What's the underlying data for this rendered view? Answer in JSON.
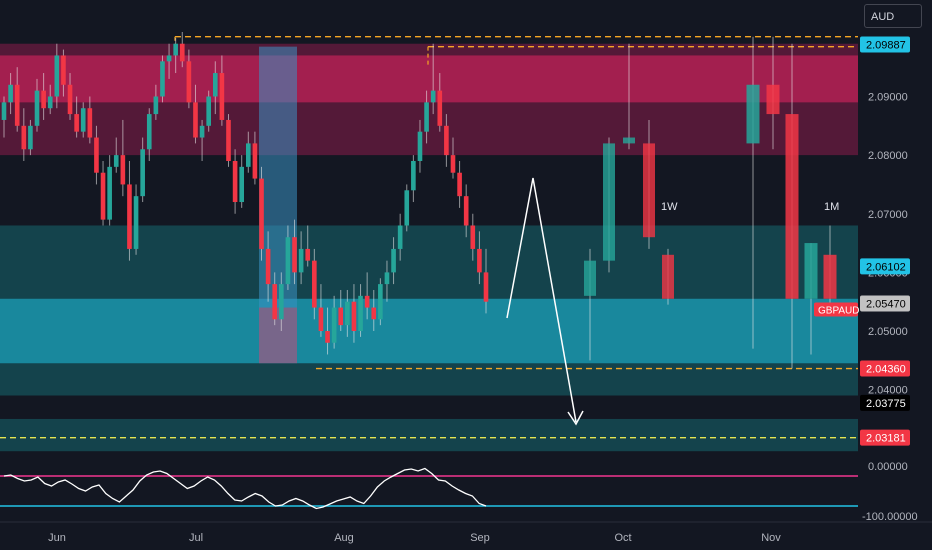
{
  "symbol": "GBPAUD",
  "currency_button": "AUD",
  "colors": {
    "bg": "#131722",
    "up": "#26a69a",
    "down": "#f23645",
    "rsi_line": "#ffffff",
    "supply_zone": "#8a1c4a",
    "demand_zone": "#15686f",
    "dashed_level": "#f5a623"
  },
  "chart_data": [
    {
      "type": "candlestick",
      "title": "",
      "instrument": "GBPAUD",
      "x_ticks": [
        "Jun",
        "Jul",
        "Aug",
        "Sep",
        "Oct",
        "Nov"
      ],
      "y_ticks": [
        "2.04000",
        "2.05000",
        "2.06000",
        "2.07000",
        "2.08000",
        "2.09000"
      ],
      "ylim": [
        2.028,
        2.101
      ],
      "grid": false,
      "price_labels": [
        {
          "text": "2.09887",
          "value": 2.09887,
          "bg": "#22c3e6",
          "fg": "#000000"
        },
        {
          "text": "2.06102",
          "value": 2.06102,
          "bg": "#22c3e6",
          "fg": "#000000"
        },
        {
          "text": "2.05470",
          "value": 2.0547,
          "bg": "#c2c2c2",
          "fg": "#000000"
        },
        {
          "text": "2.04360",
          "value": 2.0436,
          "bg": "#f23645",
          "fg": "#ffffff"
        },
        {
          "text": "2.03775",
          "value": 2.03775,
          "bg": "#000000",
          "fg": "#ffffff"
        },
        {
          "text": "2.03181",
          "value": 2.03181,
          "bg": "#f23645",
          "fg": "#ffffff"
        }
      ],
      "symbol_tag": "GBPAUD",
      "annotations": [
        "1W",
        "1M"
      ],
      "zones": [
        {
          "kind": "supply",
          "from": 2.08,
          "to": 2.099
        },
        {
          "kind": "supply-core",
          "from": 2.089,
          "to": 2.097
        },
        {
          "kind": "demand",
          "from": 2.039,
          "to": 2.068
        },
        {
          "kind": "demand-core",
          "from": 2.0445,
          "to": 2.0555
        }
      ],
      "levels": [
        {
          "value": 2.1002,
          "style": "dashed",
          "color": "#f5a623"
        },
        {
          "value": 2.0985,
          "style": "dashed",
          "color": "#f5a623"
        },
        {
          "value": 2.0436,
          "style": "dashed",
          "color": "#f5a623"
        },
        {
          "value": 2.0318,
          "style": "dashed",
          "color": "#e6e650"
        }
      ],
      "daily_candles": [
        [
          2.086,
          2.09,
          2.083,
          2.089
        ],
        [
          2.089,
          2.094,
          2.087,
          2.092
        ],
        [
          2.092,
          2.095,
          2.084,
          2.085
        ],
        [
          2.085,
          2.088,
          2.079,
          2.081
        ],
        [
          2.081,
          2.086,
          2.08,
          2.085
        ],
        [
          2.085,
          2.093,
          2.084,
          2.091
        ],
        [
          2.091,
          2.094,
          2.086,
          2.088
        ],
        [
          2.088,
          2.092,
          2.087,
          2.09
        ],
        [
          2.09,
          2.099,
          2.088,
          2.097
        ],
        [
          2.097,
          2.098,
          2.09,
          2.092
        ],
        [
          2.092,
          2.094,
          2.086,
          2.087
        ],
        [
          2.087,
          2.09,
          2.083,
          2.084
        ],
        [
          2.084,
          2.089,
          2.083,
          2.088
        ],
        [
          2.088,
          2.09,
          2.082,
          2.083
        ],
        [
          2.083,
          2.085,
          2.075,
          2.077
        ],
        [
          2.077,
          2.079,
          2.068,
          2.069
        ],
        [
          2.069,
          2.08,
          2.068,
          2.078
        ],
        [
          2.078,
          2.083,
          2.077,
          2.08
        ],
        [
          2.08,
          2.086,
          2.073,
          2.075
        ],
        [
          2.075,
          2.079,
          2.062,
          2.064
        ],
        [
          2.064,
          2.075,
          2.063,
          2.073
        ],
        [
          2.073,
          2.083,
          2.072,
          2.081
        ],
        [
          2.081,
          2.088,
          2.079,
          2.087
        ],
        [
          2.087,
          2.092,
          2.086,
          2.09
        ],
        [
          2.09,
          2.097,
          2.089,
          2.096
        ],
        [
          2.096,
          2.099,
          2.093,
          2.097
        ],
        [
          2.097,
          2.1,
          2.094,
          2.099
        ],
        [
          2.099,
          2.101,
          2.095,
          2.096
        ],
        [
          2.096,
          2.098,
          2.088,
          2.089
        ],
        [
          2.089,
          2.092,
          2.082,
          2.083
        ],
        [
          2.083,
          2.086,
          2.079,
          2.085
        ],
        [
          2.085,
          2.091,
          2.084,
          2.09
        ],
        [
          2.09,
          2.096,
          2.087,
          2.094
        ],
        [
          2.094,
          2.097,
          2.085,
          2.086
        ],
        [
          2.086,
          2.087,
          2.078,
          2.079
        ],
        [
          2.079,
          2.081,
          2.07,
          2.072
        ],
        [
          2.072,
          2.08,
          2.071,
          2.078
        ],
        [
          2.078,
          2.084,
          2.077,
          2.082
        ],
        [
          2.082,
          2.084,
          2.075,
          2.076
        ],
        [
          2.076,
          2.078,
          2.062,
          2.064
        ],
        [
          2.064,
          2.067,
          2.055,
          2.058
        ],
        [
          2.058,
          2.06,
          2.051,
          2.052
        ],
        [
          2.052,
          2.06,
          2.05,
          2.058
        ],
        [
          2.058,
          2.068,
          2.057,
          2.066
        ],
        [
          2.066,
          2.069,
          2.058,
          2.06
        ],
        [
          2.06,
          2.067,
          2.058,
          2.064
        ],
        [
          2.064,
          2.068,
          2.061,
          2.062
        ],
        [
          2.062,
          2.064,
          2.052,
          2.054
        ],
        [
          2.054,
          2.058,
          2.049,
          2.05
        ],
        [
          2.05,
          2.054,
          2.046,
          2.048
        ],
        [
          2.048,
          2.056,
          2.047,
          2.054
        ],
        [
          2.054,
          2.057,
          2.05,
          2.051
        ],
        [
          2.051,
          2.057,
          2.049,
          2.055
        ],
        [
          2.055,
          2.058,
          2.048,
          2.05
        ],
        [
          2.05,
          2.058,
          2.049,
          2.056
        ],
        [
          2.056,
          2.06,
          2.052,
          2.054
        ],
        [
          2.054,
          2.057,
          2.05,
          2.052
        ],
        [
          2.052,
          2.059,
          2.051,
          2.058
        ],
        [
          2.058,
          2.062,
          2.055,
          2.06
        ],
        [
          2.06,
          2.066,
          2.058,
          2.064
        ],
        [
          2.064,
          2.07,
          2.062,
          2.068
        ],
        [
          2.068,
          2.075,
          2.067,
          2.074
        ],
        [
          2.074,
          2.08,
          2.072,
          2.079
        ],
        [
          2.079,
          2.086,
          2.077,
          2.084
        ],
        [
          2.084,
          2.091,
          2.082,
          2.089
        ],
        [
          2.089,
          2.099,
          2.087,
          2.091
        ],
        [
          2.091,
          2.094,
          2.084,
          2.085
        ],
        [
          2.085,
          2.087,
          2.078,
          2.08
        ],
        [
          2.08,
          2.083,
          2.076,
          2.077
        ],
        [
          2.077,
          2.079,
          2.071,
          2.073
        ],
        [
          2.073,
          2.075,
          2.066,
          2.068
        ],
        [
          2.068,
          2.07,
          2.062,
          2.064
        ],
        [
          2.064,
          2.067,
          2.058,
          2.06
        ],
        [
          2.06,
          2.064,
          2.053,
          2.055
        ]
      ],
      "weekly_candles": [
        [
          2.056,
          2.064,
          2.045,
          2.062
        ],
        [
          2.062,
          2.083,
          2.06,
          2.082
        ],
        [
          2.082,
          2.099,
          2.081,
          2.083
        ],
        [
          2.082,
          2.086,
          2.064,
          2.066
        ],
        [
          2.063,
          2.064,
          2.0545,
          2.0555
        ]
      ],
      "monthly_candles": [
        [
          2.082,
          2.1002,
          2.047,
          2.092
        ],
        [
          2.092,
          2.1002,
          2.081,
          2.087
        ],
        [
          2.087,
          2.099,
          2.0436,
          2.0555
        ],
        [
          2.0555,
          2.065,
          2.046,
          2.065
        ],
        [
          2.063,
          2.068,
          2.0545,
          2.0555
        ]
      ],
      "rsi": {
        "ylabels": [
          "0.00000",
          "-100.00000"
        ],
        "levels": [
          0,
          -100
        ],
        "values": [
          -20,
          -18,
          -25,
          -30,
          -28,
          -22,
          -35,
          -40,
          -32,
          -28,
          -36,
          -45,
          -50,
          -42,
          -38,
          -55,
          -65,
          -72,
          -60,
          -48,
          -30,
          -18,
          -12,
          -10,
          -15,
          -25,
          -35,
          -45,
          -40,
          -30,
          -22,
          -28,
          -40,
          -55,
          -68,
          -70,
          -62,
          -55,
          -60,
          -72,
          -80,
          -78,
          -70,
          -65,
          -70,
          -78,
          -85,
          -82,
          -76,
          -70,
          -66,
          -62,
          -70,
          -75,
          -60,
          -42,
          -30,
          -22,
          -15,
          -8,
          -6,
          -10,
          -5,
          -15,
          -28,
          -30,
          -40,
          -48,
          -55,
          -60,
          -75,
          -80
        ]
      }
    }
  ]
}
